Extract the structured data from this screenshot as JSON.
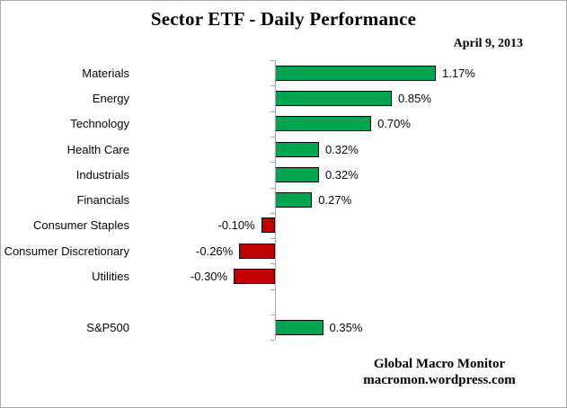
{
  "header": {
    "title": "Sector ETF - Daily Performance",
    "date": "April 9, 2013"
  },
  "footer": {
    "line1": "Global Macro Monitor",
    "line2": "macromon.wordpress.com"
  },
  "chart_data": {
    "type": "bar",
    "orientation": "horizontal",
    "title": "Sector ETF - Daily Performance",
    "subtitle": "April 9, 2013",
    "categories": [
      "Materials",
      "Energy",
      "Technology",
      "Health Care",
      "Industrials",
      "Financials",
      "Consumer Staples",
      "Consumer Discretionary",
      "Utilities"
    ],
    "values": [
      1.17,
      0.85,
      0.7,
      0.32,
      0.32,
      0.27,
      -0.1,
      -0.26,
      -0.3
    ],
    "benchmark": {
      "label": "S&P500",
      "value": 0.35
    },
    "value_suffix": "%",
    "value_decimals": 2,
    "value_labels_position": "outside-end",
    "grid": false,
    "x_axis_labels": false,
    "colors": {
      "positive": "#00a550",
      "negative": "#c00000",
      "bar_border": "#000000",
      "axis": "#a6a6a6"
    },
    "source_line1": "Global Macro Monitor",
    "source_line2": "macromon.wordpress.com"
  }
}
